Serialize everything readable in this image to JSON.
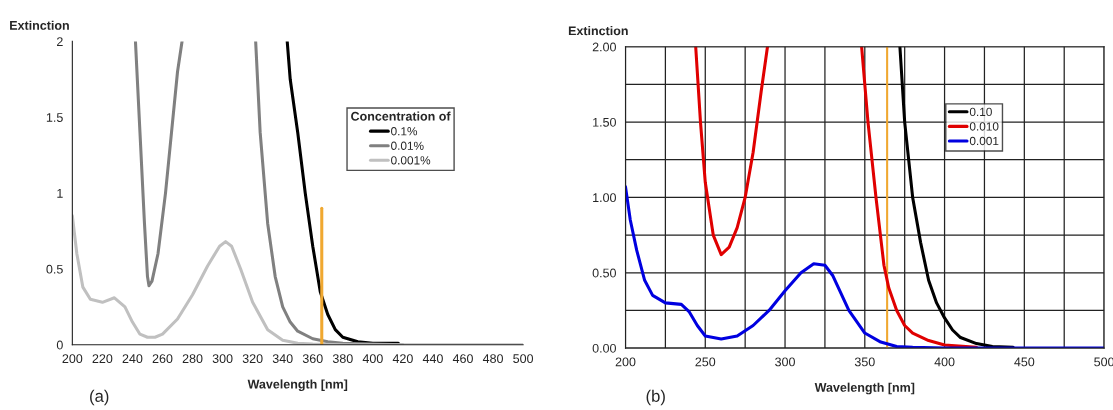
{
  "chart_data": [
    {
      "type": "line",
      "ylabel": "Extinction",
      "xlabel": "Wavelength [nm]",
      "legend_title": "Concentration of",
      "annotations": [
        "(a)"
      ],
      "xlim": [
        200,
        500
      ],
      "xticks": [
        200,
        220,
        240,
        260,
        280,
        300,
        320,
        340,
        360,
        380,
        400,
        420,
        440,
        460,
        480,
        500
      ],
      "ylim": [
        0,
        2
      ],
      "yticks": [
        0,
        0.5,
        1,
        1.5,
        2
      ],
      "grid": false,
      "legend": "top right",
      "series": [
        {
          "name": "0.1%",
          "color": "#000000",
          "x": [
            343,
            345,
            350,
            355,
            360,
            365,
            370,
            375,
            380,
            390,
            400,
            417
          ],
          "values": [
            2,
            1.75,
            1.4,
            1.0,
            0.65,
            0.35,
            0.2,
            0.1,
            0.05,
            0.02,
            0.01,
            0.01
          ]
        },
        {
          "name": "0.01%",
          "color": "#808080",
          "x": [
            242,
            245,
            248,
            250,
            251,
            253,
            257,
            262,
            266,
            270,
            273,
            300,
            322,
            325,
            330,
            335,
            340,
            345,
            350,
            360,
            370,
            380,
            400,
            420
          ],
          "values": [
            2,
            1.4,
            0.8,
            0.45,
            0.39,
            0.42,
            0.6,
            1.0,
            1.4,
            1.8,
            2,
            null,
            2,
            1.4,
            0.8,
            0.45,
            0.25,
            0.15,
            0.09,
            0.04,
            0.02,
            0.01,
            0.005,
            0
          ]
        },
        {
          "name": "0.001%",
          "color": "#c0c0c0",
          "x": [
            200,
            203,
            207,
            212,
            220,
            228,
            235,
            240,
            245,
            250,
            255,
            260,
            270,
            280,
            290,
            298,
            302,
            306,
            312,
            320,
            330,
            340,
            350,
            360,
            380,
            500
          ],
          "values": [
            0.85,
            0.6,
            0.38,
            0.3,
            0.28,
            0.31,
            0.25,
            0.15,
            0.07,
            0.05,
            0.05,
            0.07,
            0.17,
            0.33,
            0.52,
            0.65,
            0.68,
            0.65,
            0.5,
            0.28,
            0.1,
            0.03,
            0.01,
            0.005,
            0,
            0
          ]
        },
        {
          "color": "#f0a830",
          "x": [
            366,
            366
          ],
          "values": [
            0,
            0.9
          ]
        }
      ]
    },
    {
      "type": "line",
      "ylabel": "Extinction",
      "xlabel": "Wavelength [nm]",
      "annotations": [
        "(b)"
      ],
      "xlim": [
        200,
        500
      ],
      "xticks": [
        200,
        {
          "value": 225,
          "label": null
        },
        250,
        {
          "value": 275,
          "label": null
        },
        300,
        {
          "value": 325,
          "label": null
        },
        350,
        {
          "value": 375,
          "label": null
        },
        400,
        {
          "value": 425,
          "label": null
        },
        450,
        {
          "value": 475,
          "label": null
        },
        500
      ],
      "ylim": [
        0,
        2
      ],
      "yticks": [
        {
          "value": 0,
          "label": "0.00"
        },
        {
          "value": 0.25,
          "label": null
        },
        {
          "value": 0.5,
          "label": "0.50"
        },
        {
          "value": 0.75,
          "label": null
        },
        {
          "value": 1,
          "label": "1.00"
        },
        {
          "value": 1.25,
          "label": null
        },
        {
          "value": 1.5,
          "label": "1.50"
        },
        {
          "value": 1.75,
          "label": null
        },
        {
          "value": 2,
          "label": "2.00"
        }
      ],
      "grid": true,
      "legend": "top right",
      "ref_lines": [
        {
          "axis": "x",
          "value": 364,
          "color": "#f0a830"
        }
      ],
      "series": [
        {
          "name": "0.10",
          "color": "#000000",
          "x": [
            372,
            375,
            380,
            385,
            390,
            395,
            400,
            405,
            410,
            420,
            430,
            443
          ],
          "values": [
            2,
            1.5,
            1.0,
            0.7,
            0.45,
            0.3,
            0.2,
            0.12,
            0.07,
            0.03,
            0.01,
            0.005
          ]
        },
        {
          "name": "0.010",
          "color": "#e00000",
          "x": [
            244,
            247,
            250,
            255,
            260,
            265,
            270,
            275,
            280,
            285,
            289,
            320,
            348,
            352,
            357,
            362,
            365,
            370,
            375,
            380,
            390,
            400,
            420
          ],
          "values": [
            2,
            1.5,
            1.1,
            0.75,
            0.62,
            0.67,
            0.8,
            1.0,
            1.3,
            1.7,
            2,
            null,
            2,
            1.5,
            1.0,
            0.55,
            0.4,
            0.25,
            0.15,
            0.1,
            0.05,
            0.02,
            0.005
          ]
        },
        {
          "name": "0.001",
          "color": "#0000e0",
          "x": [
            200,
            203,
            207,
            212,
            217,
            225,
            235,
            240,
            245,
            250,
            260,
            270,
            280,
            290,
            300,
            310,
            318,
            325,
            330,
            340,
            350,
            360,
            370,
            380,
            400,
            500
          ],
          "values": [
            1.07,
            0.85,
            0.65,
            0.45,
            0.35,
            0.3,
            0.29,
            0.24,
            0.15,
            0.08,
            0.06,
            0.08,
            0.15,
            0.25,
            0.38,
            0.5,
            0.56,
            0.55,
            0.48,
            0.25,
            0.1,
            0.04,
            0.01,
            0.005,
            0,
            0
          ]
        }
      ]
    }
  ]
}
